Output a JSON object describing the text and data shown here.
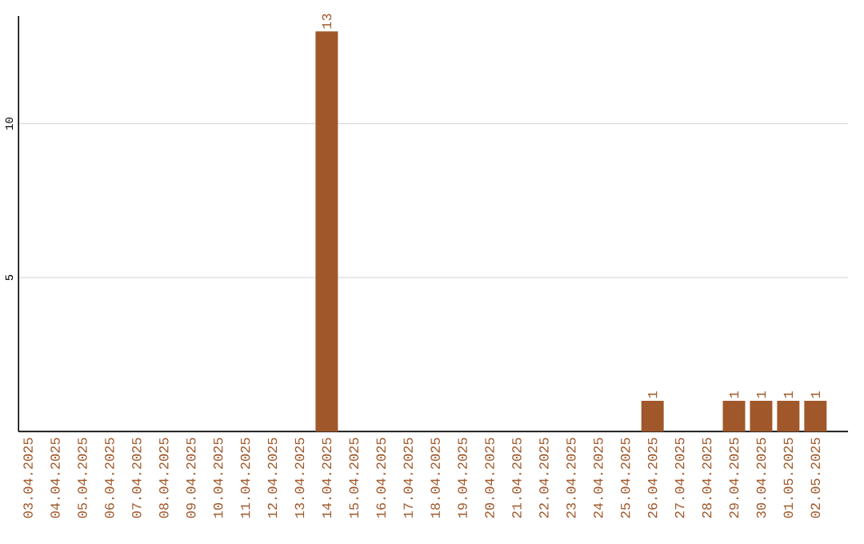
{
  "chart_data": {
    "type": "bar",
    "categories": [
      "03.04.2025",
      "04.04.2025",
      "05.04.2025",
      "06.04.2025",
      "07.04.2025",
      "08.04.2025",
      "09.04.2025",
      "10.04.2025",
      "11.04.2025",
      "12.04.2025",
      "13.04.2025",
      "14.04.2025",
      "15.04.2025",
      "16.04.2025",
      "17.04.2025",
      "18.04.2025",
      "19.04.2025",
      "20.04.2025",
      "21.04.2025",
      "22.04.2025",
      "23.04.2025",
      "24.04.2025",
      "25.04.2025",
      "26.04.2025",
      "27.04.2025",
      "28.04.2025",
      "29.04.2025",
      "30.04.2025",
      "01.05.2025",
      "02.05.2025"
    ],
    "values": [
      0,
      0,
      0,
      0,
      0,
      0,
      0,
      0,
      0,
      0,
      0,
      13,
      0,
      0,
      0,
      0,
      0,
      0,
      0,
      0,
      0,
      0,
      0,
      1,
      0,
      0,
      1,
      1,
      1,
      1
    ],
    "value_labels": [
      null,
      null,
      null,
      null,
      null,
      null,
      null,
      null,
      null,
      null,
      null,
      "13",
      null,
      null,
      null,
      null,
      null,
      null,
      null,
      null,
      null,
      null,
      null,
      "1",
      null,
      null,
      "1",
      "1",
      "1",
      "1"
    ],
    "color": "#a0582a",
    "ylim": [
      0,
      13.5
    ],
    "yticks": [
      5,
      10
    ],
    "grid": "y"
  }
}
